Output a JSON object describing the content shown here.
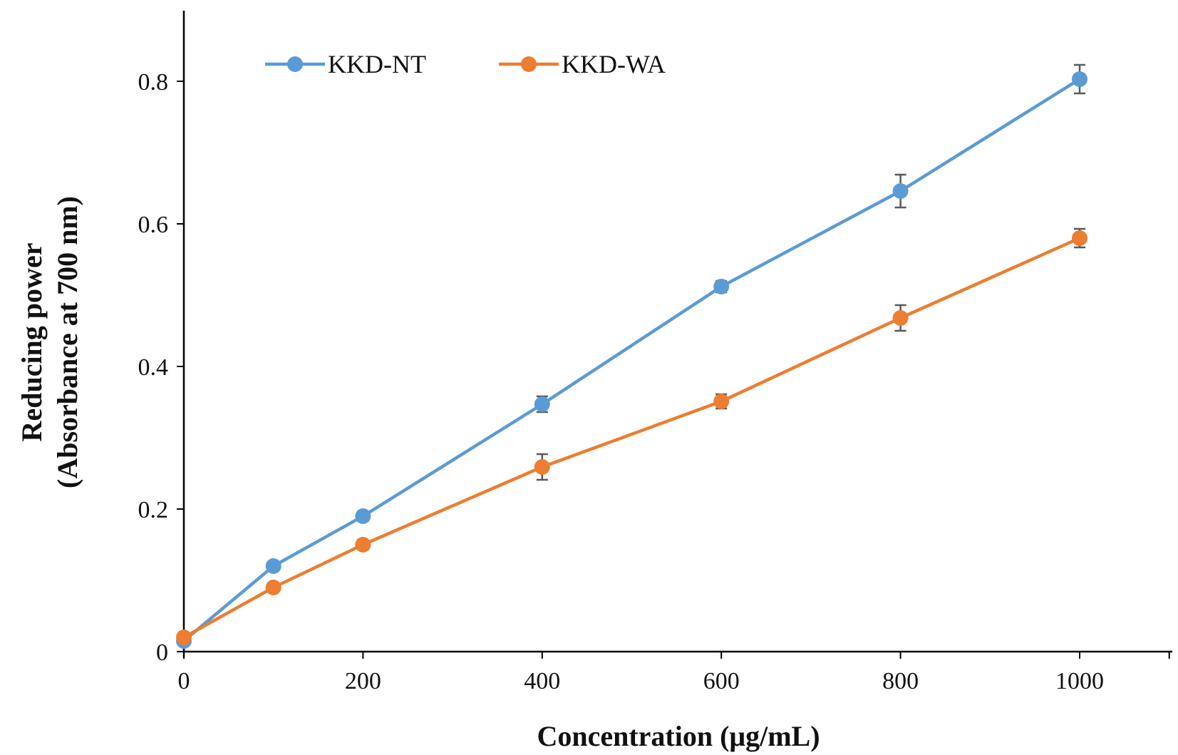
{
  "chart_data": {
    "type": "line",
    "xlabel": "Concentration (μg/mL)",
    "ylabel_line1": "Reducing power",
    "ylabel_line2": "(Absorbance at 700 nm)",
    "x": [
      0,
      100,
      200,
      400,
      600,
      800,
      1000
    ],
    "xticks": [
      0,
      200,
      400,
      600,
      800,
      1000
    ],
    "yticks": [
      0,
      0.2,
      0.4,
      0.6,
      0.8
    ],
    "xtick_labels": [
      "0",
      "200",
      "400",
      "600",
      "800",
      "1000"
    ],
    "ytick_labels": [
      "0",
      "0.2",
      "0.4",
      "0.6",
      "0.8"
    ],
    "xlim": [
      0,
      1100
    ],
    "ylim": [
      0,
      0.9
    ],
    "grid": false,
    "legend_position": "top-left",
    "series": [
      {
        "name": "KKD-NT",
        "color": "#5B9BD5",
        "values": [
          0.015,
          0.12,
          0.19,
          0.347,
          0.512,
          0.646,
          0.803
        ],
        "errors": [
          0.005,
          0.006,
          0.007,
          0.011,
          0.008,
          0.023,
          0.02
        ]
      },
      {
        "name": "KKD-WA",
        "color": "#ED7D31",
        "values": [
          0.02,
          0.09,
          0.15,
          0.259,
          0.351,
          0.468,
          0.58
        ],
        "errors": [
          0.004,
          0.005,
          0.007,
          0.018,
          0.01,
          0.018,
          0.013
        ]
      }
    ],
    "error_bar_color": "#595959",
    "axis_color": "#000000"
  }
}
